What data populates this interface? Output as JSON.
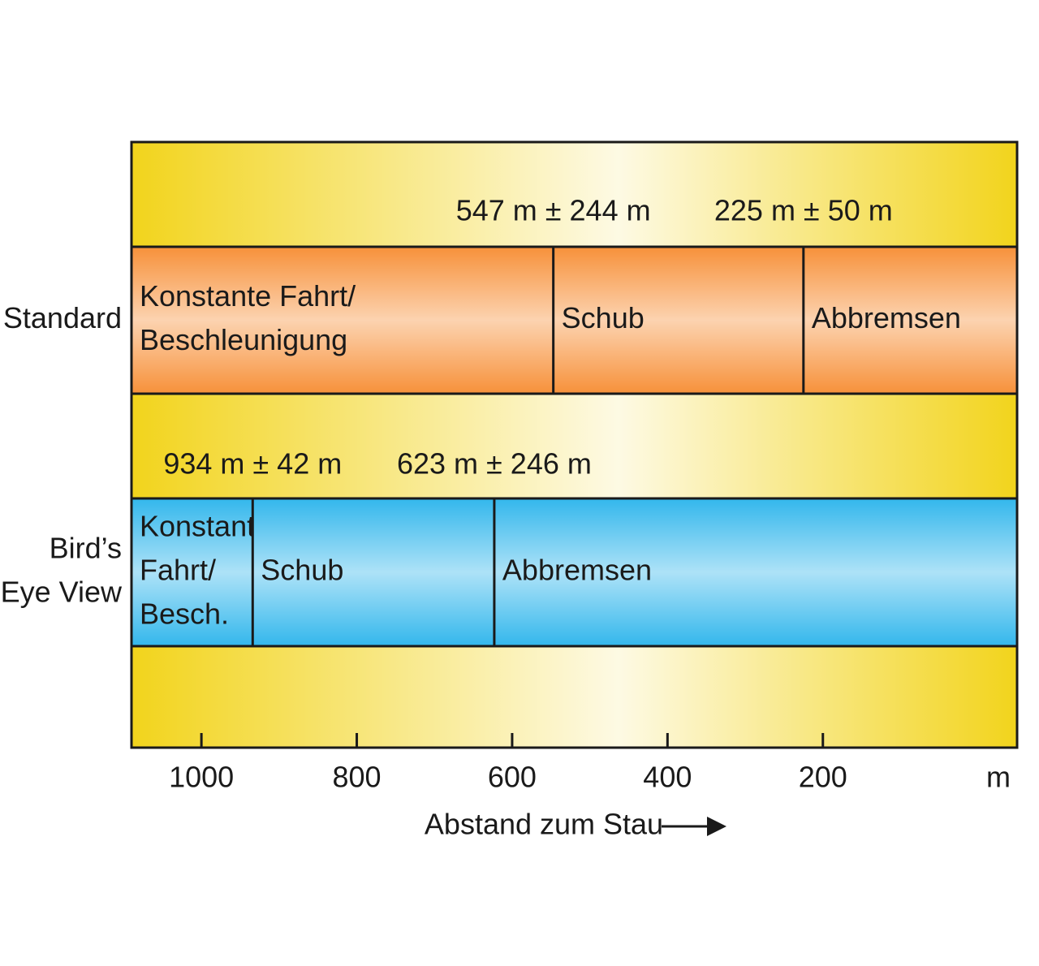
{
  "chart_data": {
    "type": "phases",
    "xlim": [
      1090,
      -50
    ],
    "xticks": [
      1000,
      800,
      600,
      400,
      200
    ],
    "x_unit": "m",
    "xlabel": "Abstand zum Stau",
    "background_color": "#f2d41c",
    "rows": [
      {
        "name": [
          "Standard"
        ],
        "color": "#f7913a",
        "values": [
          547,
          225
        ],
        "errors": [
          244,
          50
        ],
        "value_labels": [
          "547 m ± 244 m",
          "225 m ± 50 m"
        ],
        "segments": [
          [
            "Konstante Fahrt/",
            "Beschleunigung"
          ],
          [
            "Schub"
          ],
          [
            "Abbremsen"
          ]
        ]
      },
      {
        "name": [
          "Bird’s",
          "Eye View"
        ],
        "color": "#33b7ec",
        "values": [
          934,
          623
        ],
        "errors": [
          42,
          246
        ],
        "value_labels": [
          "934 m ± 42 m",
          "623 m ± 246 m"
        ],
        "segments": [
          [
            "Konstante",
            "Fahrt/",
            "Besch."
          ],
          [
            "Schub"
          ],
          [
            "Abbremsen"
          ]
        ]
      }
    ]
  }
}
